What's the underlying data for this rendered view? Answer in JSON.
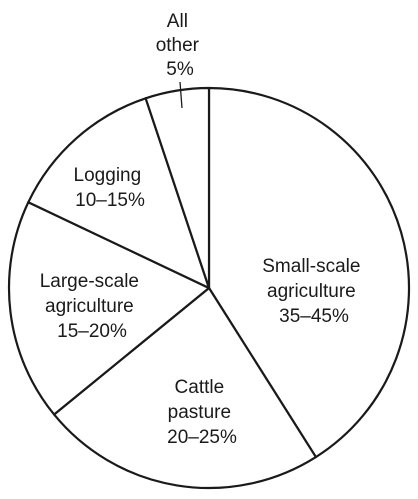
{
  "chart_data": {
    "type": "pie",
    "slices": [
      {
        "name": "Small-scale agriculture",
        "range": [
          35,
          45
        ],
        "value": 40,
        "label_lines": [
          "Small-scale",
          "agriculture",
          "35–45%"
        ]
      },
      {
        "name": "Cattle pasture",
        "range": [
          20,
          25
        ],
        "value": 22.5,
        "label_lines": [
          "Cattle",
          "pasture",
          "20–25%"
        ]
      },
      {
        "name": "Large-scale agriculture",
        "range": [
          15,
          20
        ],
        "value": 17.5,
        "label_lines": [
          "Large-scale",
          "agriculture",
          "15–20%"
        ]
      },
      {
        "name": "Logging",
        "range": [
          10,
          15
        ],
        "value": 12.5,
        "label_lines": [
          "Logging",
          "10–15%"
        ]
      },
      {
        "name": "All other",
        "range": [
          5,
          5
        ],
        "value": 5,
        "label_lines": [
          "All",
          "other",
          "5%"
        ]
      }
    ],
    "start": "12 o'clock",
    "direction": "clockwise",
    "legend": "none",
    "colors": {
      "fill": "#ffffff",
      "stroke": "#1a1a1a",
      "text": "#1a1a1a"
    }
  }
}
